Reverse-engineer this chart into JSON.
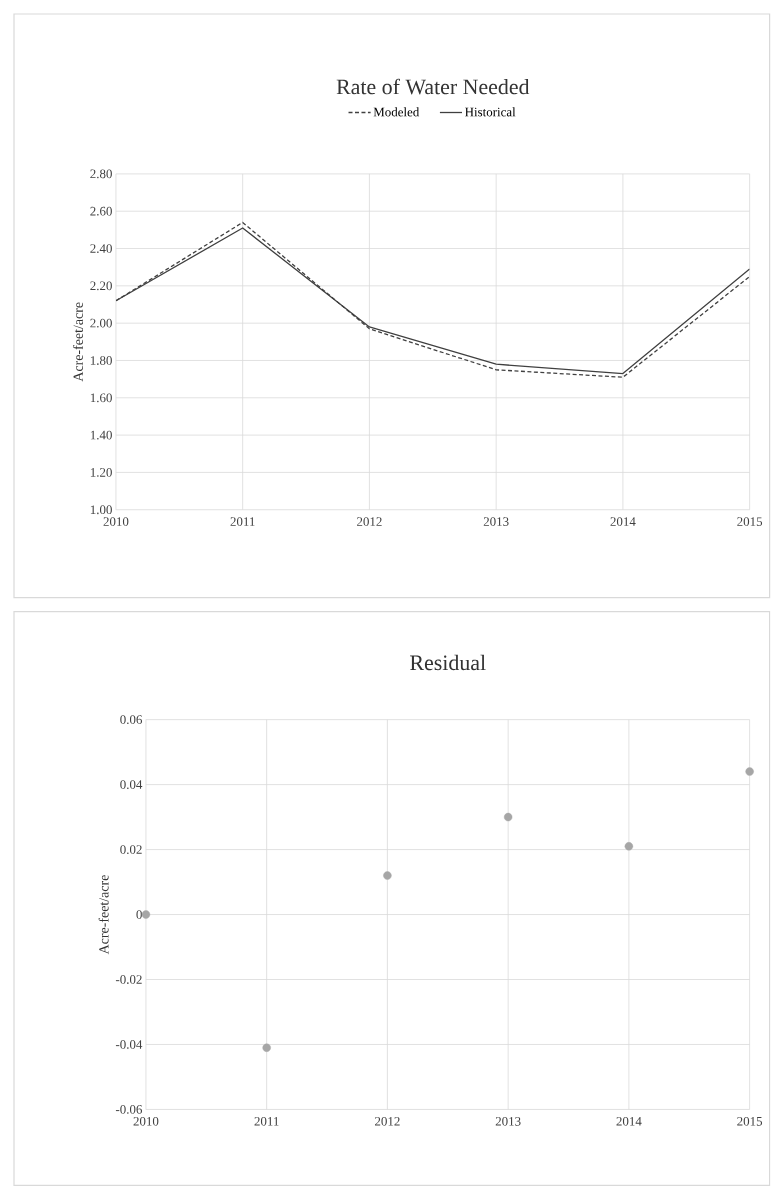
{
  "chart_data": [
    {
      "type": "line",
      "title": "Rate of Water Needed",
      "ylabel": "Acre-feet/acre",
      "x": [
        2010,
        2011,
        2012,
        2013,
        2014,
        2015
      ],
      "series": [
        {
          "name": "Modeled",
          "color": "#404040",
          "line_style": "dashed",
          "values": [
            2.12,
            2.54,
            1.97,
            1.75,
            1.71,
            2.25
          ]
        },
        {
          "name": "Historical",
          "color": "#404040",
          "line_style": "solid",
          "values": [
            2.12,
            2.51,
            1.98,
            1.78,
            1.73,
            2.29
          ]
        }
      ],
      "xlim": [
        2010,
        2015
      ],
      "xticks": [
        2010,
        2011,
        2012,
        2013,
        2014,
        2015
      ],
      "ylim": [
        1,
        2.8
      ],
      "yticks": [
        {
          "value": 1,
          "label": "1.00"
        },
        {
          "value": 1.2,
          "label": "1.20"
        },
        {
          "value": 1.4,
          "label": "1.40"
        },
        {
          "value": 1.6,
          "label": "1.60"
        },
        {
          "value": 1.8,
          "label": "1.80"
        },
        {
          "value": 2,
          "label": "2.00"
        },
        {
          "value": 2.2,
          "label": "2.20"
        },
        {
          "value": 2.4,
          "label": "2.40"
        },
        {
          "value": 2.6,
          "label": "2.60"
        },
        {
          "value": 2.8,
          "label": "2.80"
        }
      ],
      "grid": true,
      "legend": "top",
      "marker": "none"
    },
    {
      "type": "scatter",
      "title": "Residual",
      "ylabel": "Acre-feet/acre",
      "x": [
        2010,
        2011,
        2012,
        2013,
        2014,
        2015
      ],
      "series": [
        {
          "color": "#a6a6a6",
          "values": [
            0,
            -0.041,
            0.012,
            0.03,
            0.021,
            0.044
          ]
        }
      ],
      "xlim": [
        2010,
        2015
      ],
      "xticks": [
        2010,
        2011,
        2012,
        2013,
        2014,
        2015
      ],
      "ylim": [
        -0.06,
        0.06
      ],
      "yticks": [
        -0.06,
        -0.04,
        -0.02,
        0,
        0.02,
        0.04,
        0.06
      ],
      "grid": true,
      "marker": "circle"
    }
  ]
}
